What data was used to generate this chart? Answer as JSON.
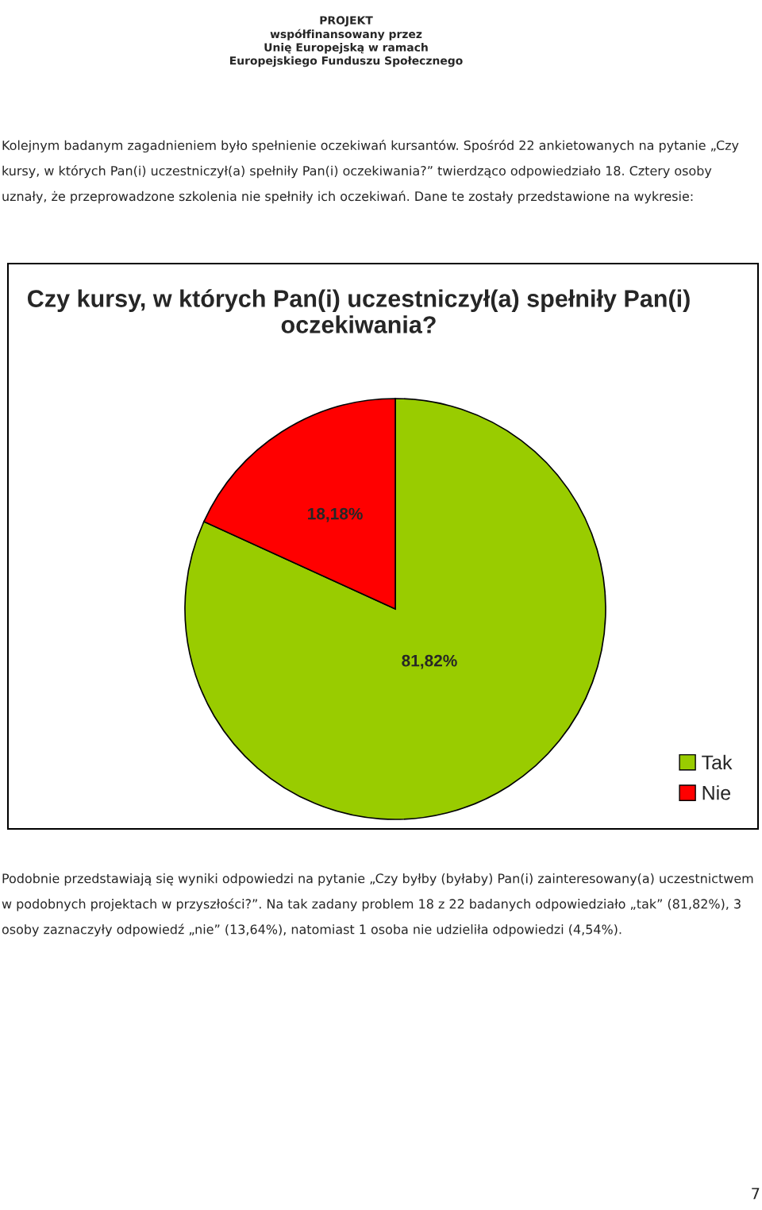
{
  "chart_data": {
    "type": "pie",
    "title": "Czy kursy, w których Pan(i) uczestniczył(a) spełniły Pan(i) oczekiwania?",
    "categories": [
      "Tak",
      "Nie"
    ],
    "values": [
      81.82,
      18.18
    ],
    "colors": [
      "#99cc00",
      "#ff0000"
    ],
    "value_labels": [
      "81,82%",
      "18,18%"
    ],
    "legend": "bottom right",
    "annotations": [
      "PROJEKT\nwspółfinansowany przez\nUnię Europejską w ramach\nEuropejskiego Funduszu Społecznego",
      "Kolejnym badanym zagadnieniem było spełnienie oczekiwań kursantów. Spośród 22 ankietowanych na pytanie „Czy kursy, w których Pan(i) uczestniczył(a) spełniły Pan(i) oczekiwania?” twierdząco odpowiedziało 18. Cztery osoby uznały, że przeprowadzone szkolenia nie spełniły ich oczekiwań. Dane te zostały przedstawione na wykresie:",
      "Podobnie przedstawiają się wyniki odpowiedzi na pytanie „Czy byłby (byłaby) Pan(i) zainteresowany(a) uczestnictwem w podobnych projektach w przyszłości?”. Na tak zadany problem 18 z 22 badanych odpowiedziało „tak” (81,82%), 3 osoby zaznaczyły odpowiedź „nie” (13,64%), natomiast 1 osoba nie udzieliła odpowiedzi (4,54%).",
      "7"
    ]
  }
}
